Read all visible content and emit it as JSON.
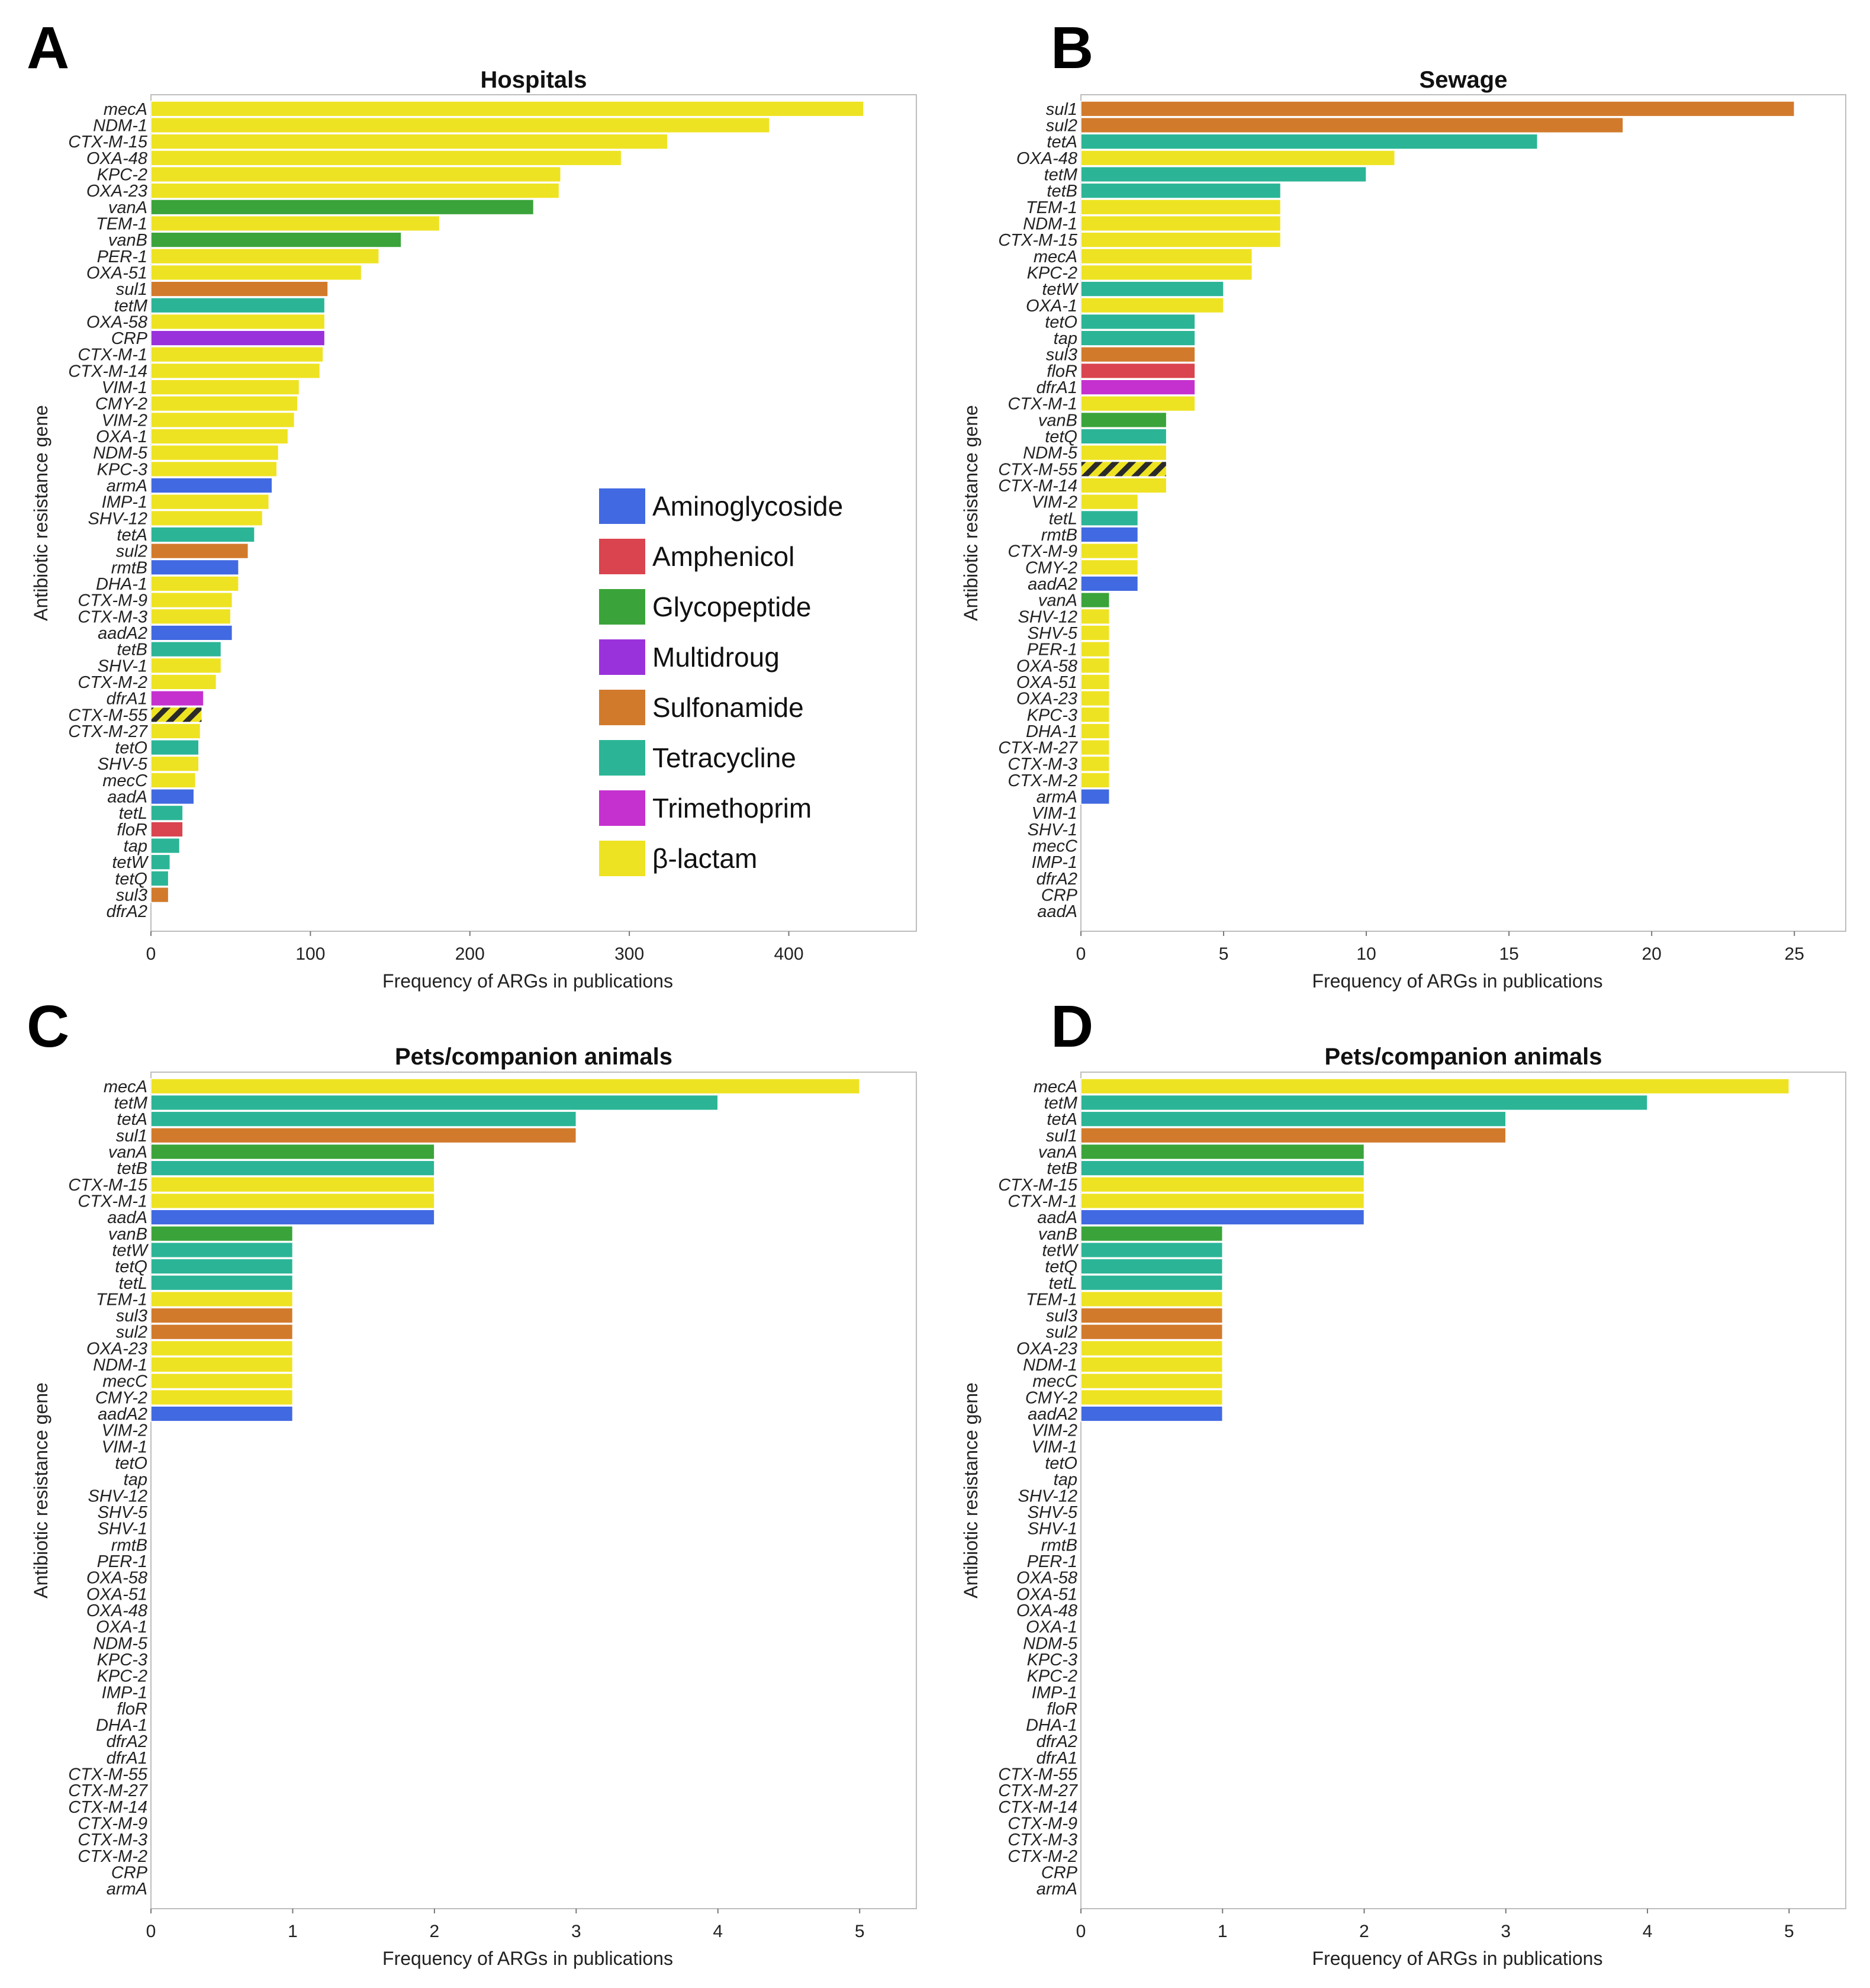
{
  "colors": {
    "Aminoglycoside": "#4169e1",
    "Amphenicol": "#d9444f",
    "Glycopeptide": "#3aa43a",
    "Multidroug": "#9a32db",
    "Sulfonamide": "#d27a2c",
    "Tetracycline": "#2bb596",
    "Trimethoprim": "#c531cf",
    "β-lactam": "#eee322"
  },
  "legend": [
    "Aminoglycoside",
    "Amphenicol",
    "Glycopeptide",
    "Multidroug",
    "Sulfonamide",
    "Tetracycline",
    "Trimethoprim",
    "β-lactam"
  ],
  "chart_data": [
    {
      "panel": "A",
      "type": "bar",
      "orientation": "horizontal",
      "title": "Hospitals",
      "xlabel": "Frequency of ARGs in publications",
      "ylabel": "Antibiotic resistance gene",
      "xlim": [
        0,
        480
      ],
      "xticks": [
        0,
        100,
        200,
        300,
        400
      ],
      "legend_location": "right",
      "genes": [
        "mecA",
        "NDM-1",
        "CTX-M-15",
        "OXA-48",
        "KPC-2",
        "OXA-23",
        "vanA",
        "TEM-1",
        "vanB",
        "PER-1",
        "OXA-51",
        "sul1",
        "tetM",
        "OXA-58",
        "CRP",
        "CTX-M-1",
        "CTX-M-14",
        "VIM-1",
        "CMY-2",
        "VIM-2",
        "OXA-1",
        "NDM-5",
        "KPC-3",
        "armA",
        "IMP-1",
        "SHV-12",
        "tetA",
        "sul2",
        "rmtB",
        "DHA-1",
        "CTX-M-9",
        "CTX-M-3",
        "aadA2",
        "tetB",
        "SHV-1",
        "CTX-M-2",
        "dfrA1",
        "CTX-M-55",
        "CTX-M-27",
        "tetO",
        "SHV-5",
        "mecC",
        "aadA",
        "tetL",
        "floR",
        "tap",
        "tetW",
        "tetQ",
        "sul3",
        "dfrA2"
      ],
      "values": [
        447,
        388,
        324,
        295,
        257,
        256,
        240,
        181,
        157,
        143,
        132,
        111,
        109,
        109,
        109,
        108,
        106,
        93,
        92,
        90,
        86,
        80,
        79,
        76,
        74,
        70,
        65,
        61,
        55,
        55,
        51,
        50,
        51,
        44,
        44,
        41,
        33,
        32,
        31,
        30,
        30,
        28,
        27,
        20,
        20,
        18,
        12,
        11,
        11,
        0
      ],
      "classes": [
        "β-lactam",
        "β-lactam",
        "β-lactam",
        "β-lactam",
        "β-lactam",
        "β-lactam",
        "Glycopeptide",
        "β-lactam",
        "Glycopeptide",
        "β-lactam",
        "β-lactam",
        "Sulfonamide",
        "Tetracycline",
        "β-lactam",
        "Multidroug",
        "β-lactam",
        "β-lactam",
        "β-lactam",
        "β-lactam",
        "β-lactam",
        "β-lactam",
        "β-lactam",
        "β-lactam",
        "Aminoglycoside",
        "β-lactam",
        "β-lactam",
        "Tetracycline",
        "Sulfonamide",
        "Aminoglycoside",
        "β-lactam",
        "β-lactam",
        "β-lactam",
        "Aminoglycoside",
        "Tetracycline",
        "β-lactam",
        "β-lactam",
        "Trimethoprim",
        "β-lactam",
        "β-lactam",
        "Tetracycline",
        "β-lactam",
        "β-lactam",
        "Aminoglycoside",
        "Tetracycline",
        "Amphenicol",
        "Tetracycline",
        "Tetracycline",
        "Tetracycline",
        "Sulfonamide",
        "Trimethoprim"
      ],
      "hatched": [
        "CTX-M-55"
      ]
    },
    {
      "panel": "B",
      "type": "bar",
      "orientation": "horizontal",
      "title": "Sewage",
      "xlabel": "Frequency of ARGs in publications",
      "ylabel": "Antibiotic resistance gene",
      "xlim": [
        0,
        26.8
      ],
      "xticks": [
        0,
        5,
        10,
        15,
        20,
        25
      ],
      "genes": [
        "sul1",
        "sul2",
        "tetA",
        "OXA-48",
        "tetM",
        "tetB",
        "TEM-1",
        "NDM-1",
        "CTX-M-15",
        "mecA",
        "KPC-2",
        "tetW",
        "OXA-1",
        "tetO",
        "tap",
        "sul3",
        "floR",
        "dfrA1",
        "CTX-M-1",
        "vanB",
        "tetQ",
        "NDM-5",
        "CTX-M-55",
        "CTX-M-14",
        "VIM-2",
        "tetL",
        "rmtB",
        "CTX-M-9",
        "CMY-2",
        "aadA2",
        "vanA",
        "SHV-12",
        "SHV-5",
        "PER-1",
        "OXA-58",
        "OXA-51",
        "OXA-23",
        "KPC-3",
        "DHA-1",
        "CTX-M-27",
        "CTX-M-3",
        "CTX-M-2",
        "armA",
        "VIM-1",
        "SHV-1",
        "mecC",
        "IMP-1",
        "dfrA2",
        "CRP",
        "aadA"
      ],
      "values": [
        25,
        19,
        16,
        11,
        10,
        7,
        7,
        7,
        7,
        6,
        6,
        5,
        5,
        4,
        4,
        4,
        4,
        4,
        4,
        3,
        3,
        3,
        3,
        3,
        2,
        2,
        2,
        2,
        2,
        2,
        1,
        1,
        1,
        1,
        1,
        1,
        1,
        1,
        1,
        1,
        1,
        1,
        1,
        0,
        0,
        0,
        0,
        0,
        0,
        0
      ],
      "classes": [
        "Sulfonamide",
        "Sulfonamide",
        "Tetracycline",
        "β-lactam",
        "Tetracycline",
        "Tetracycline",
        "β-lactam",
        "β-lactam",
        "β-lactam",
        "β-lactam",
        "β-lactam",
        "Tetracycline",
        "β-lactam",
        "Tetracycline",
        "Tetracycline",
        "Sulfonamide",
        "Amphenicol",
        "Trimethoprim",
        "β-lactam",
        "Glycopeptide",
        "Tetracycline",
        "β-lactam",
        "β-lactam",
        "β-lactam",
        "β-lactam",
        "Tetracycline",
        "Aminoglycoside",
        "β-lactam",
        "β-lactam",
        "Aminoglycoside",
        "Glycopeptide",
        "β-lactam",
        "β-lactam",
        "β-lactam",
        "β-lactam",
        "β-lactam",
        "β-lactam",
        "β-lactam",
        "β-lactam",
        "β-lactam",
        "β-lactam",
        "β-lactam",
        "Aminoglycoside",
        "β-lactam",
        "β-lactam",
        "β-lactam",
        "β-lactam",
        "Trimethoprim",
        "Multidroug",
        "Aminoglycoside"
      ],
      "hatched": [
        "CTX-M-55"
      ]
    },
    {
      "panel": "C",
      "type": "bar",
      "orientation": "horizontal",
      "title": "Pets/companion animals",
      "xlabel": "Frequency of ARGs in publications",
      "ylabel": "Antibiotic resistance gene",
      "xlim": [
        0,
        5.4
      ],
      "xticks": [
        0,
        1,
        2,
        3,
        4,
        5
      ],
      "genes": [
        "mecA",
        "tetM",
        "tetA",
        "sul1",
        "vanA",
        "tetB",
        "CTX-M-15",
        "CTX-M-1",
        "aadA",
        "vanB",
        "tetW",
        "tetQ",
        "tetL",
        "TEM-1",
        "sul3",
        "sul2",
        "OXA-23",
        "NDM-1",
        "mecC",
        "CMY-2",
        "aadA2",
        "VIM-2",
        "VIM-1",
        "tetO",
        "tap",
        "SHV-12",
        "SHV-5",
        "SHV-1",
        "rmtB",
        "PER-1",
        "OXA-58",
        "OXA-51",
        "OXA-48",
        "OXA-1",
        "NDM-5",
        "KPC-3",
        "KPC-2",
        "IMP-1",
        "floR",
        "DHA-1",
        "dfrA2",
        "dfrA1",
        "CTX-M-55",
        "CTX-M-27",
        "CTX-M-14",
        "CTX-M-9",
        "CTX-M-3",
        "CTX-M-2",
        "CRP",
        "armA"
      ],
      "values": [
        5,
        4,
        3,
        3,
        2,
        2,
        2,
        2,
        2,
        1,
        1,
        1,
        1,
        1,
        1,
        1,
        1,
        1,
        1,
        1,
        1,
        0,
        0,
        0,
        0,
        0,
        0,
        0,
        0,
        0,
        0,
        0,
        0,
        0,
        0,
        0,
        0,
        0,
        0,
        0,
        0,
        0,
        0,
        0,
        0,
        0,
        0,
        0,
        0,
        0
      ],
      "classes": [
        "β-lactam",
        "Tetracycline",
        "Tetracycline",
        "Sulfonamide",
        "Glycopeptide",
        "Tetracycline",
        "β-lactam",
        "β-lactam",
        "Aminoglycoside",
        "Glycopeptide",
        "Tetracycline",
        "Tetracycline",
        "Tetracycline",
        "β-lactam",
        "Sulfonamide",
        "Sulfonamide",
        "β-lactam",
        "β-lactam",
        "β-lactam",
        "β-lactam",
        "Aminoglycoside",
        "β-lactam",
        "β-lactam",
        "Tetracycline",
        "Tetracycline",
        "β-lactam",
        "β-lactam",
        "β-lactam",
        "Aminoglycoside",
        "β-lactam",
        "β-lactam",
        "β-lactam",
        "β-lactam",
        "β-lactam",
        "β-lactam",
        "β-lactam",
        "β-lactam",
        "β-lactam",
        "Amphenicol",
        "β-lactam",
        "Trimethoprim",
        "Trimethoprim",
        "β-lactam",
        "β-lactam",
        "β-lactam",
        "β-lactam",
        "β-lactam",
        "β-lactam",
        "Multidroug",
        "Aminoglycoside"
      ],
      "hatched": []
    },
    {
      "panel": "D",
      "type": "bar",
      "orientation": "horizontal",
      "title": "Pets/companion animals",
      "xlabel": "Frequency of ARGs in publications",
      "ylabel": "Antibiotic resistance gene",
      "xlim": [
        0,
        5.4
      ],
      "xticks": [
        0,
        1,
        2,
        3,
        4,
        5
      ],
      "genes": [
        "mecA",
        "tetM",
        "tetA",
        "sul1",
        "vanA",
        "tetB",
        "CTX-M-15",
        "CTX-M-1",
        "aadA",
        "vanB",
        "tetW",
        "tetQ",
        "tetL",
        "TEM-1",
        "sul3",
        "sul2",
        "OXA-23",
        "NDM-1",
        "mecC",
        "CMY-2",
        "aadA2",
        "VIM-2",
        "VIM-1",
        "tetO",
        "tap",
        "SHV-12",
        "SHV-5",
        "SHV-1",
        "rmtB",
        "PER-1",
        "OXA-58",
        "OXA-51",
        "OXA-48",
        "OXA-1",
        "NDM-5",
        "KPC-3",
        "KPC-2",
        "IMP-1",
        "floR",
        "DHA-1",
        "dfrA2",
        "dfrA1",
        "CTX-M-55",
        "CTX-M-27",
        "CTX-M-14",
        "CTX-M-9",
        "CTX-M-3",
        "CTX-M-2",
        "CRP",
        "armA"
      ],
      "values": [
        5,
        4,
        3,
        3,
        2,
        2,
        2,
        2,
        2,
        1,
        1,
        1,
        1,
        1,
        1,
        1,
        1,
        1,
        1,
        1,
        1,
        0,
        0,
        0,
        0,
        0,
        0,
        0,
        0,
        0,
        0,
        0,
        0,
        0,
        0,
        0,
        0,
        0,
        0,
        0,
        0,
        0,
        0,
        0,
        0,
        0,
        0,
        0,
        0,
        0
      ],
      "classes": [
        "β-lactam",
        "Tetracycline",
        "Tetracycline",
        "Sulfonamide",
        "Glycopeptide",
        "Tetracycline",
        "β-lactam",
        "β-lactam",
        "Aminoglycoside",
        "Glycopeptide",
        "Tetracycline",
        "Tetracycline",
        "Tetracycline",
        "β-lactam",
        "Sulfonamide",
        "Sulfonamide",
        "β-lactam",
        "β-lactam",
        "β-lactam",
        "β-lactam",
        "Aminoglycoside",
        "β-lactam",
        "β-lactam",
        "Tetracycline",
        "Tetracycline",
        "β-lactam",
        "β-lactam",
        "β-lactam",
        "Aminoglycoside",
        "β-lactam",
        "β-lactam",
        "β-lactam",
        "β-lactam",
        "β-lactam",
        "β-lactam",
        "β-lactam",
        "β-lactam",
        "β-lactam",
        "Amphenicol",
        "β-lactam",
        "Trimethoprim",
        "Trimethoprim",
        "β-lactam",
        "β-lactam",
        "β-lactam",
        "β-lactam",
        "β-lactam",
        "β-lactam",
        "Multidroug",
        "Aminoglycoside"
      ],
      "hatched": []
    }
  ]
}
